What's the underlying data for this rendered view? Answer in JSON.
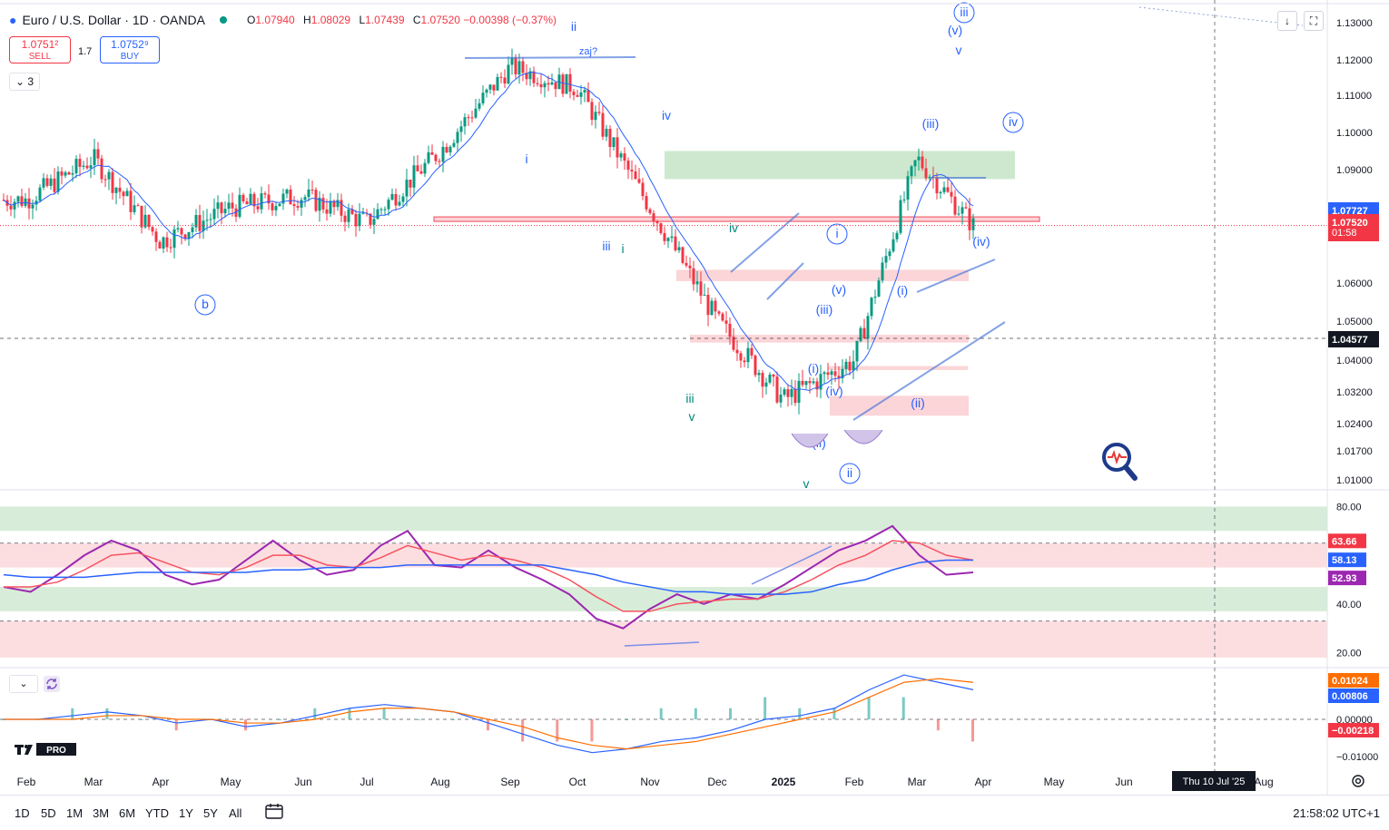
{
  "header": {
    "symbol": "Euro / U.S. Dollar · 1D · OANDA",
    "ohlc": {
      "o_label": "O",
      "o": "1.07940",
      "h_label": "H",
      "h": "1.08029",
      "l_label": "L",
      "l": "1.07439",
      "c_label": "C",
      "c": "1.07520",
      "change": "−0.00398 (−0.37%)"
    }
  },
  "trade": {
    "sell_price": "1.0751²",
    "sell_label": "SELL",
    "spread": "1.7",
    "buy_price": "1.0752⁹",
    "buy_label": "BUY"
  },
  "collapse_label": "⌄ 3",
  "top_buttons": {
    "download": "↓",
    "fit": "⛶"
  },
  "colors": {
    "up": "#089981",
    "down": "#f23645",
    "ma": "#2962ff",
    "rsi": "#9c27b0",
    "rsi_ma": "#f7525f",
    "macd": "#2962ff",
    "signal": "#ff6d00",
    "green_zone": "#c8e6c9",
    "red_zone": "#fbd0d4",
    "wave": "#2962ff",
    "wave_teal": "#00897b"
  },
  "chart_data": [
    {
      "type": "candlestick",
      "title": "Euro / U.S. Dollar · 1D · OANDA",
      "xlabel": "",
      "ylabel": "",
      "x_ticks": [
        "Feb",
        "Mar",
        "Apr",
        "May",
        "Jun",
        "Jul",
        "Aug",
        "Sep",
        "Oct",
        "Nov",
        "Dec",
        "2025",
        "Feb",
        "Mar",
        "Apr",
        "May",
        "Jun",
        "Aug"
      ],
      "y_ticks": [
        "1.13000",
        "1.12000",
        "1.11000",
        "1.10000",
        "1.09000",
        "1.06000",
        "1.05000",
        "1.04000",
        "1.03200",
        "1.02400",
        "1.01700",
        "1.01000"
      ],
      "ylim": [
        1.008,
        1.134
      ],
      "monthly_close_path": [
        {
          "month": "Feb 2024",
          "price": 1.082
        },
        {
          "month": "Mar 2024",
          "price": 1.093
        },
        {
          "month": "Apr 2024",
          "price": 1.071
        },
        {
          "month": "May 2024",
          "price": 1.08
        },
        {
          "month": "Jun 2024",
          "price": 1.083
        },
        {
          "month": "Jul 2024",
          "price": 1.076
        },
        {
          "month": "Aug 2024",
          "price": 1.095
        },
        {
          "month": "Sep 2024",
          "price": 1.118
        },
        {
          "month": "Oct 2024",
          "price": 1.112
        },
        {
          "month": "Nov 2024",
          "price": 1.08
        },
        {
          "month": "Dec 2024",
          "price": 1.05
        },
        {
          "month": "Jan 2025",
          "price": 1.03
        },
        {
          "month": "Feb 2025",
          "price": 1.04
        },
        {
          "month": "Mar 2025",
          "price": 1.093
        },
        {
          "month": "Apr 2025",
          "price": 1.0752
        }
      ],
      "key_levels": {
        "high": 1.12,
        "low": 1.0176,
        "last": 1.0752
      },
      "price_labels": [
        {
          "value": "1.07727",
          "bg": "#2962ff"
        },
        {
          "value": "1.07520",
          "bg": "#f23645",
          "sub": "01:58"
        },
        {
          "value": "1.04577",
          "bg": "#131722"
        }
      ],
      "zones": [
        {
          "kind": "green",
          "top": 1.095,
          "bottom": 1.0875
        },
        {
          "kind": "red",
          "top": 1.0775,
          "bottom": 1.0763
        },
        {
          "kind": "red",
          "top": 1.0635,
          "bottom": 1.0605
        },
        {
          "kind": "red",
          "top": 1.0465,
          "bottom": 1.0445
        },
        {
          "kind": "red",
          "top": 1.0385,
          "bottom": 1.0375
        },
        {
          "kind": "red",
          "top": 1.031,
          "bottom": 1.026
        }
      ],
      "wave_labels": [
        "ii",
        "iv",
        "i",
        "iii",
        "i",
        "b",
        "iv",
        "iii",
        "v",
        "i",
        "v",
        "(v)",
        "(iii)",
        "(i)",
        "(iv)",
        "(ii)",
        "ii",
        "v",
        "(i)",
        "(ii)",
        "(iii)",
        "(v)",
        "(iv)",
        "iv",
        "iii",
        "zaj?"
      ],
      "date_cursor": "Thu 10 Jul '25"
    },
    {
      "type": "line",
      "title": "RSI",
      "y_ticks": [
        "80.00",
        "40.00",
        "20.00"
      ],
      "ylim": [
        15,
        85
      ],
      "levels": [
        {
          "value": 63.66,
          "label": "63.66",
          "bg": "#f23645"
        },
        {
          "value": 58.13,
          "label": "58.13",
          "bg": "#2962ff"
        },
        {
          "value": 52.93,
          "label": "52.93",
          "bg": "#9c27b0"
        }
      ],
      "series": [
        {
          "values": [
            47,
            45,
            52,
            60,
            66,
            62,
            52,
            48,
            50,
            58,
            66,
            58,
            52,
            54,
            64,
            70,
            56,
            55,
            62,
            55,
            50,
            44,
            34,
            30,
            38,
            44,
            40,
            44,
            42,
            48,
            55,
            62,
            66,
            72,
            60,
            52,
            53
          ]
        },
        {
          "values": [
            47,
            47,
            49,
            54,
            60,
            61,
            57,
            53,
            52,
            55,
            60,
            60,
            56,
            55,
            59,
            64,
            61,
            58,
            60,
            58,
            55,
            50,
            43,
            37,
            37,
            40,
            41,
            42,
            42,
            45,
            50,
            56,
            60,
            66,
            65,
            60,
            58
          ]
        },
        {
          "values": [
            52,
            51,
            51,
            51,
            52,
            53,
            53,
            53,
            53,
            53,
            54,
            54,
            55,
            55,
            55,
            56,
            56,
            56,
            56,
            56,
            56,
            54,
            52,
            49,
            47,
            45,
            45,
            44,
            44,
            44,
            45,
            48,
            50,
            54,
            57,
            58,
            58
          ]
        }
      ]
    },
    {
      "type": "line",
      "title": "MACD",
      "y_ticks": [
        "0.00000",
        "−0.01000"
      ],
      "ylim": [
        -0.013,
        0.013
      ],
      "levels": [
        {
          "value": 0.01024,
          "label": "0.01024",
          "bg": "#ff6d00"
        },
        {
          "value": 0.00806,
          "label": "0.00806",
          "bg": "#2962ff"
        },
        {
          "value": -0.00218,
          "label": "−0.00218",
          "bg": "#f23645"
        }
      ],
      "series": [
        {
          "values": [
            0.0,
            0.0,
            0.001,
            0.002,
            0.001,
            -0.001,
            0.0,
            -0.002,
            -0.001,
            0.001,
            0.003,
            0.004,
            0.003,
            0.002,
            -0.001,
            -0.004,
            -0.007,
            -0.009,
            -0.008,
            -0.006,
            -0.005,
            -0.003,
            0.0,
            0.001,
            0.003,
            0.008,
            0.012,
            0.01,
            0.008
          ]
        },
        {
          "values": [
            0.0,
            0.0,
            0.0,
            0.001,
            0.001,
            0.0,
            0.0,
            -0.001,
            -0.001,
            0.0,
            0.002,
            0.003,
            0.003,
            0.002,
            0.0,
            -0.002,
            -0.005,
            -0.007,
            -0.008,
            -0.007,
            -0.006,
            -0.004,
            -0.002,
            0.0,
            0.002,
            0.006,
            0.01,
            0.011,
            0.01
          ]
        }
      ]
    }
  ],
  "timeframes": [
    "1D",
    "5D",
    "1M",
    "3M",
    "6M",
    "YTD",
    "1Y",
    "5Y",
    "All"
  ],
  "clock": "21:58:02 UTC+1",
  "indicator_btn": "⌄",
  "logo_text": "PRO"
}
